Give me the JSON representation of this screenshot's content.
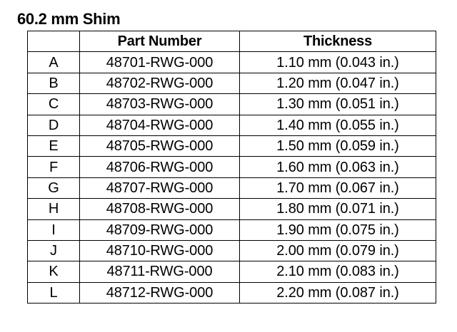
{
  "title": "60.2 mm Shim",
  "table": {
    "headers": {
      "letter": "",
      "part_number": "Part Number",
      "thickness": "Thickness"
    },
    "rows": [
      {
        "letter": "A",
        "part_number": "48701-RWG-000",
        "thickness": "1.10 mm (0.043 in.)"
      },
      {
        "letter": "B",
        "part_number": "48702-RWG-000",
        "thickness": "1.20 mm (0.047 in.)"
      },
      {
        "letter": "C",
        "part_number": "48703-RWG-000",
        "thickness": "1.30 mm (0.051 in.)"
      },
      {
        "letter": "D",
        "part_number": "48704-RWG-000",
        "thickness": "1.40 mm (0.055 in.)"
      },
      {
        "letter": "E",
        "part_number": "48705-RWG-000",
        "thickness": "1.50 mm (0.059 in.)"
      },
      {
        "letter": "F",
        "part_number": "48706-RWG-000",
        "thickness": "1.60 mm (0.063 in.)"
      },
      {
        "letter": "G",
        "part_number": "48707-RWG-000",
        "thickness": "1.70 mm (0.067 in.)"
      },
      {
        "letter": "H",
        "part_number": "48708-RWG-000",
        "thickness": "1.80 mm (0.071 in.)"
      },
      {
        "letter": "I",
        "part_number": "48709-RWG-000",
        "thickness": "1.90 mm (0.075 in.)"
      },
      {
        "letter": "J",
        "part_number": "48710-RWG-000",
        "thickness": "2.00 mm (0.079 in.)"
      },
      {
        "letter": "K",
        "part_number": "48711-RWG-000",
        "thickness": "2.10 mm (0.083 in.)"
      },
      {
        "letter": "L",
        "part_number": "48712-RWG-000",
        "thickness": "2.20 mm (0.087 in.)"
      }
    ]
  }
}
